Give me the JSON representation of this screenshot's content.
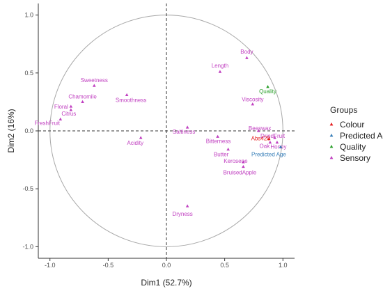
{
  "chart_data": {
    "type": "scatter",
    "xlabel": "Dim1 (52.7%)",
    "ylabel": "Dim2 (16%)",
    "xlim": [
      -1.1,
      1.1
    ],
    "ylim": [
      -1.1,
      1.1
    ],
    "xticks": [
      -1.0,
      -0.5,
      0.0,
      0.5,
      1.0
    ],
    "yticks": [
      -1.0,
      -0.5,
      0.0,
      0.5,
      1.0
    ],
    "xtick_labels": [
      "-1.0",
      "-0.5",
      "0.0",
      "0.5",
      "1.0"
    ],
    "ytick_labels": [
      "-1.0",
      "-0.5",
      "0.0",
      "0.5",
      "1.0"
    ],
    "grid": false,
    "unit_circle": true,
    "reference_lines": [
      0,
      0
    ],
    "legend": {
      "title": "Groups",
      "placement": "right",
      "entries": [
        "Colour",
        "Predicted Age",
        "Quality",
        "Sensory"
      ]
    },
    "group_colors": {
      "Colour": "#e41a1c",
      "Predicted Age": "#377eb8",
      "Quality": "#2ca02c",
      "Sensory": "#c03fc0"
    },
    "points": [
      {
        "label": "Body",
        "group": "Sensory",
        "x": 0.69,
        "y": 0.63
      },
      {
        "label": "Length",
        "group": "Sensory",
        "x": 0.46,
        "y": 0.51
      },
      {
        "label": "Quality",
        "group": "Quality",
        "x": 0.87,
        "y": 0.38
      },
      {
        "label": "Viscosity",
        "group": "Sensory",
        "x": 0.74,
        "y": 0.23
      },
      {
        "label": "Sweetness",
        "group": "Sensory",
        "x": -0.62,
        "y": 0.39
      },
      {
        "label": "Chamomile",
        "group": "Sensory",
        "x": -0.72,
        "y": 0.25
      },
      {
        "label": "Smoothness",
        "group": "Sensory",
        "x": -0.34,
        "y": 0.31
      },
      {
        "label": "Floral",
        "group": "Sensory",
        "x": -0.82,
        "y": 0.21
      },
      {
        "label": "Citrus",
        "group": "Sensory",
        "x": -0.82,
        "y": 0.18
      },
      {
        "label": "FreshFruit",
        "group": "Sensory",
        "x": -0.91,
        "y": 0.1
      },
      {
        "label": "Acidity",
        "group": "Sensory",
        "x": -0.22,
        "y": -0.06
      },
      {
        "label": "Saltiness",
        "group": "Sensory",
        "x": 0.18,
        "y": 0.03
      },
      {
        "label": "Beeswax",
        "group": "Sensory",
        "x": 0.79,
        "y": 0.0
      },
      {
        "label": "DriedFruit",
        "group": "Sensory",
        "x": 0.93,
        "y": -0.06
      },
      {
        "label": "Abs420",
        "group": "Colour",
        "x": 0.88,
        "y": -0.07
      },
      {
        "label": "Bitterness",
        "group": "Sensory",
        "x": 0.44,
        "y": -0.05
      },
      {
        "label": "Oak",
        "group": "Sensory",
        "x": 0.89,
        "y": -0.1
      },
      {
        "label": "Honey",
        "group": "Sensory",
        "x": 0.95,
        "y": -0.1
      },
      {
        "label": "Predicted Age",
        "group": "Predicted Age",
        "x": 0.98,
        "y": -0.14
      },
      {
        "label": "Butter",
        "group": "Sensory",
        "x": 0.53,
        "y": -0.16
      },
      {
        "label": "Kerosene",
        "group": "Sensory",
        "x": 0.66,
        "y": -0.27
      },
      {
        "label": "BruisedApple",
        "group": "Sensory",
        "x": 0.66,
        "y": -0.31
      },
      {
        "label": "Dryness",
        "group": "Sensory",
        "x": 0.18,
        "y": -0.65
      }
    ]
  }
}
